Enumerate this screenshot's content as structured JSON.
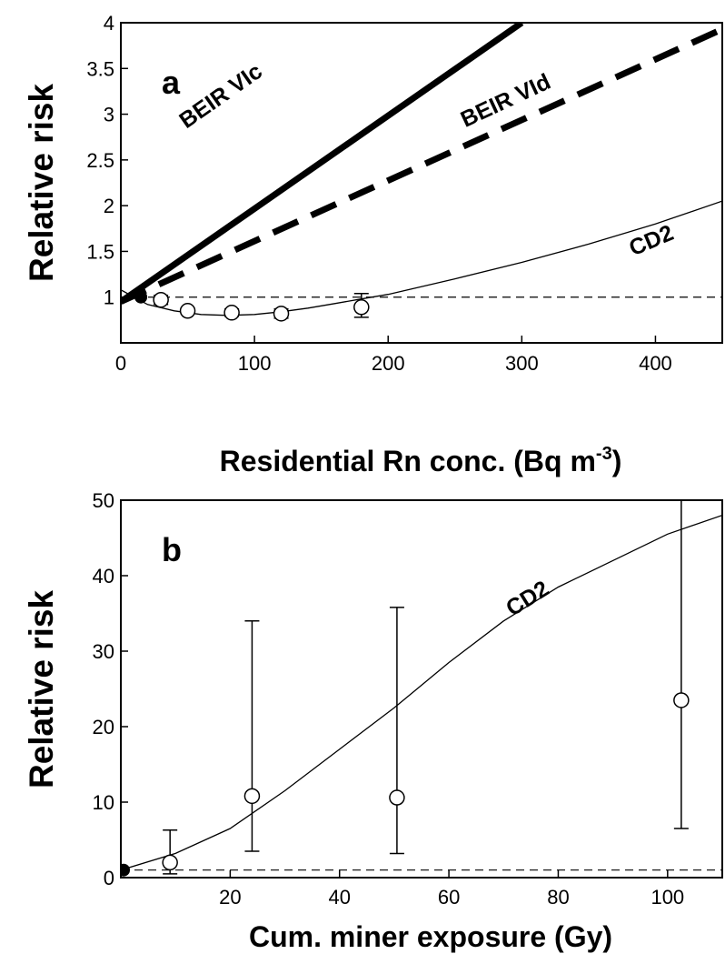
{
  "chart_data": [
    {
      "type": "line",
      "panel_label": "a",
      "xlabel_main": "Residential Rn conc. (Bq m",
      "xlabel_sup": "-3",
      "xlabel_end": ")",
      "ylabel": "Relative risk",
      "xlim": [
        0,
        450
      ],
      "ylim": [
        0.5,
        4
      ],
      "xticks": [
        "0",
        "100",
        "200",
        "300",
        "400"
      ],
      "xtick_values": [
        0,
        100,
        200,
        300,
        400
      ],
      "yticks": [
        "1",
        "1.5",
        "2",
        "2.5",
        "3",
        "3.5",
        "4"
      ],
      "ytick_values": [
        1,
        1.5,
        2,
        2.5,
        3,
        3.5,
        4
      ],
      "reference_line_y": 1,
      "grid": false,
      "series": [
        {
          "name": "BEIR VIc",
          "style": "thick-solid",
          "x": [
            0,
            300
          ],
          "y": [
            0.95,
            4.0
          ]
        },
        {
          "name": "BEIR VId",
          "style": "thick-dashed",
          "x": [
            0,
            450
          ],
          "y": [
            0.95,
            3.93
          ]
        },
        {
          "name": "CD2",
          "style": "thin-solid",
          "x": [
            0,
            20,
            40,
            60,
            80,
            100,
            120,
            140,
            160,
            180,
            200,
            250,
            300,
            350,
            400,
            450
          ],
          "y": [
            1.08,
            0.92,
            0.85,
            0.81,
            0.8,
            0.81,
            0.84,
            0.88,
            0.93,
            0.98,
            1.03,
            1.2,
            1.38,
            1.58,
            1.8,
            2.05
          ]
        }
      ],
      "points": [
        {
          "x": 30,
          "y": 0.97,
          "err_low": 0.92,
          "err_high": 1.02
        },
        {
          "x": 50,
          "y": 0.85,
          "err_low": 0.82,
          "err_high": 0.88
        },
        {
          "x": 83,
          "y": 0.83,
          "err_low": 0.79,
          "err_high": 0.87
        },
        {
          "x": 120,
          "y": 0.82,
          "err_low": 0.77,
          "err_high": 0.87
        },
        {
          "x": 180,
          "y": 0.89,
          "err_low": 0.78,
          "err_high": 1.04
        }
      ],
      "baseline_point": {
        "x": 15,
        "y": 1
      }
    },
    {
      "type": "line",
      "panel_label": "b",
      "xlabel": "Cum. miner exposure (Gy)",
      "ylabel": "Relative risk",
      "xlim": [
        0,
        110
      ],
      "ylim": [
        0,
        50
      ],
      "xticks": [
        "20",
        "40",
        "60",
        "80",
        "100"
      ],
      "xtick_values": [
        20,
        40,
        60,
        80,
        100
      ],
      "yticks": [
        "0",
        "10",
        "20",
        "30",
        "40",
        "50"
      ],
      "ytick_values": [
        0,
        10,
        20,
        30,
        40,
        50
      ],
      "reference_line_y": 1,
      "grid": false,
      "series": [
        {
          "name": "CD2",
          "style": "thin-solid",
          "x": [
            0,
            10,
            20,
            30,
            40,
            50,
            60,
            70,
            80,
            90,
            100,
            110
          ],
          "y": [
            1,
            3.2,
            6.5,
            11.5,
            17,
            22.5,
            28.5,
            34,
            38.5,
            42,
            45.5,
            48
          ]
        }
      ],
      "points": [
        {
          "x": 9,
          "y": 2,
          "err_low": 0.5,
          "err_high": 6.3
        },
        {
          "x": 24,
          "y": 10.8,
          "err_low": 3.5,
          "err_high": 34
        },
        {
          "x": 50.5,
          "y": 10.6,
          "err_low": 3.2,
          "err_high": 35.8
        },
        {
          "x": 102.5,
          "y": 23.5,
          "err_low": 6.5,
          "err_high": 50
        }
      ],
      "baseline_point": {
        "x": 0.5,
        "y": 1
      }
    }
  ]
}
